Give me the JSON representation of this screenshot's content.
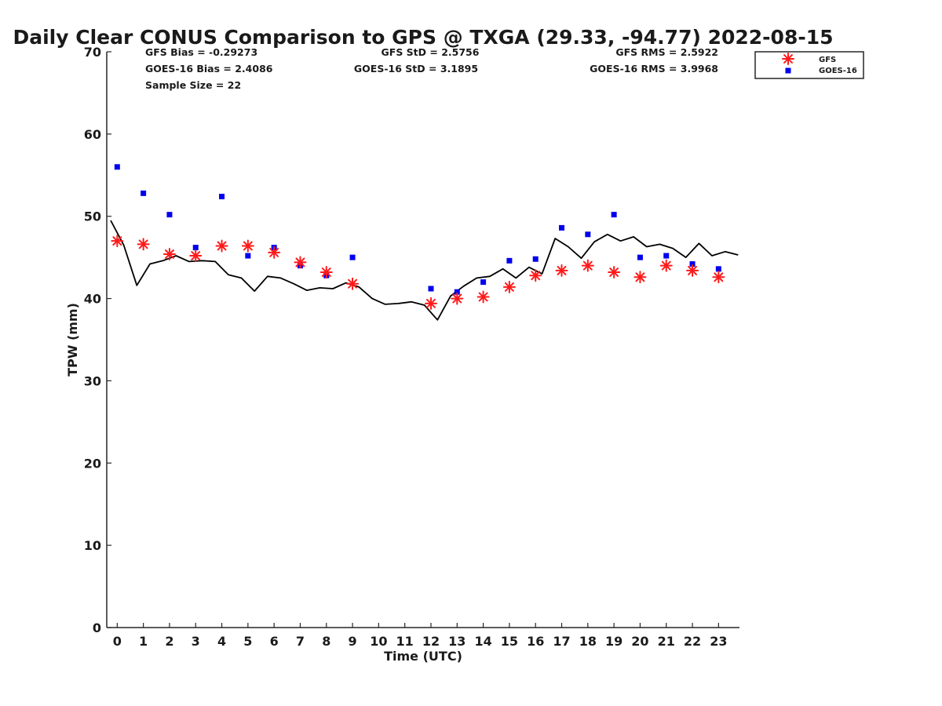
{
  "chart_data": {
    "type": "scatter",
    "title": "Daily Clear CONUS Comparison to GPS @ TXGA (29.33, -94.77) 2022-08-15",
    "xlabel": "Time (UTC)",
    "ylabel": "TPW (mm)",
    "xlim": [
      -0.4,
      23.8
    ],
    "ylim": [
      0,
      70
    ],
    "xticks": [
      0,
      1,
      2,
      3,
      4,
      5,
      6,
      7,
      8,
      9,
      10,
      11,
      12,
      13,
      14,
      15,
      16,
      17,
      18,
      19,
      20,
      21,
      22,
      23
    ],
    "yticks": [
      0,
      10,
      20,
      30,
      40,
      50,
      60,
      70
    ],
    "grid": false,
    "legend_position": "top-right, outside plot",
    "stats": [
      "GFS Bias = -0.29273",
      "GOES-16 Bias = 2.4086",
      "Sample Size = 22",
      "GFS StD = 2.5756",
      "GOES-16 StD = 3.1895",
      "GFS RMS = 2.5922",
      "GOES-16 RMS = 3.9968"
    ],
    "series": [
      {
        "name": "GFS",
        "marker": "asterisk",
        "color": "#ff1a1a",
        "x": [
          0,
          1,
          2,
          3,
          4,
          5,
          6,
          7,
          8,
          9,
          12,
          13,
          14,
          15,
          16,
          17,
          18,
          19,
          20,
          21,
          22,
          23
        ],
        "y": [
          47.0,
          46.6,
          45.4,
          45.2,
          46.4,
          46.4,
          45.6,
          44.4,
          43.2,
          41.8,
          39.4,
          40.0,
          40.2,
          41.4,
          42.8,
          43.4,
          44.0,
          43.2,
          42.6,
          44.0,
          43.4,
          42.6
        ]
      },
      {
        "name": "GOES-16",
        "marker": "square",
        "color": "#0000ee",
        "x": [
          0,
          1,
          2,
          3,
          4,
          5,
          6,
          7,
          8,
          9,
          12,
          13,
          14,
          15,
          16,
          17,
          18,
          19,
          20,
          21,
          22,
          23
        ],
        "y": [
          56.0,
          52.8,
          50.2,
          46.2,
          52.4,
          45.2,
          46.2,
          44.0,
          42.8,
          45.0,
          41.2,
          40.8,
          42.0,
          44.6,
          44.8,
          48.6,
          47.8,
          50.2,
          45.0,
          45.2,
          44.2,
          43.6
        ]
      },
      {
        "marker": "line",
        "color": "#000000",
        "x": [
          -0.25,
          0.25,
          0.75,
          1.25,
          1.75,
          2.25,
          2.75,
          3.25,
          3.75,
          4.25,
          4.75,
          5.25,
          5.75,
          6.25,
          6.75,
          7.25,
          7.75,
          8.25,
          8.75,
          9.25,
          9.75,
          10.25,
          10.75,
          11.25,
          11.75,
          12.25,
          12.75,
          13.25,
          13.75,
          14.25,
          14.75,
          15.25,
          15.75,
          16.25,
          16.75,
          17.25,
          17.75,
          18.25,
          18.75,
          19.25,
          19.75,
          20.25,
          20.75,
          21.25,
          21.75,
          22.25,
          22.75,
          23.25,
          23.75
        ],
        "y": [
          49.5,
          46.5,
          41.6,
          44.2,
          44.6,
          45.2,
          44.5,
          44.6,
          44.5,
          42.9,
          42.5,
          40.9,
          42.7,
          42.5,
          41.8,
          41.0,
          41.3,
          41.2,
          41.9,
          41.4,
          40.0,
          39.3,
          39.4,
          39.6,
          39.2,
          37.4,
          40.3,
          41.5,
          42.5,
          42.7,
          43.6,
          42.5,
          43.8,
          43.0,
          47.3,
          46.3,
          44.9,
          46.9,
          47.8,
          47.0,
          47.5,
          46.3,
          46.6,
          46.1,
          45.0,
          46.7,
          45.2,
          45.7,
          45.3
        ]
      }
    ]
  }
}
